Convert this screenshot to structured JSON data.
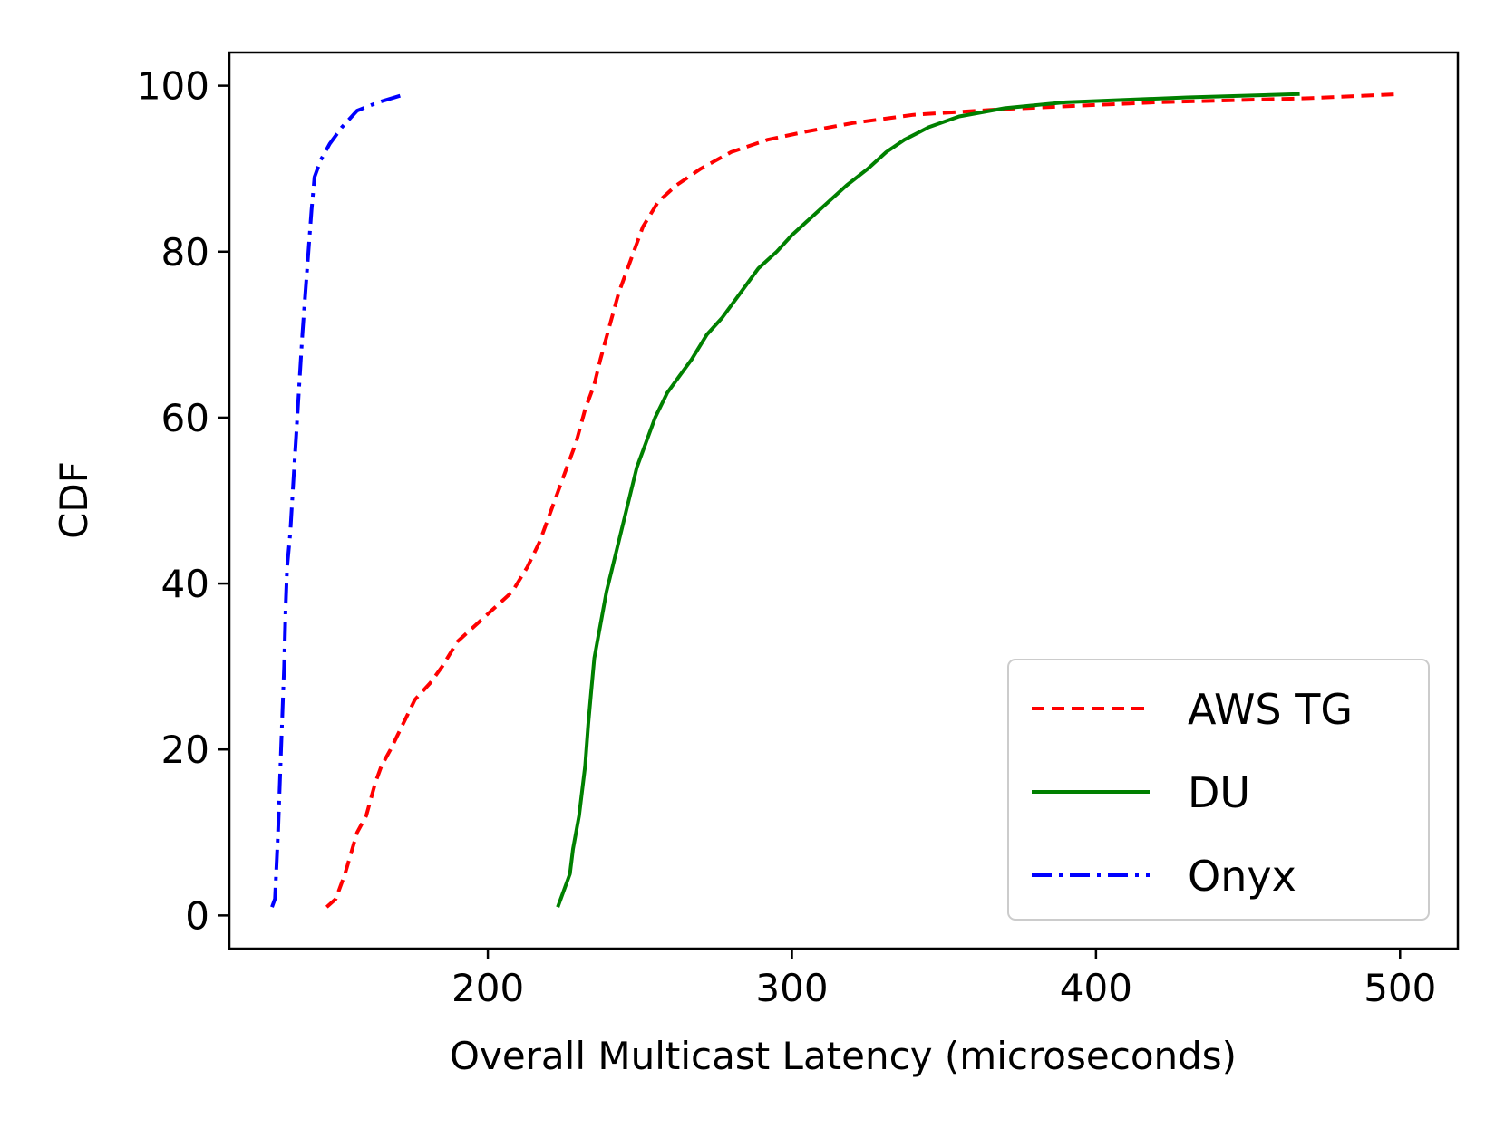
{
  "chart_data": {
    "type": "line",
    "title": "",
    "xlabel": "Overall Multicast Latency (microseconds)",
    "ylabel": "CDF",
    "xlim": [
      115,
      519
    ],
    "ylim": [
      -4,
      104
    ],
    "xticks": [
      200,
      300,
      400,
      500
    ],
    "yticks": [
      0,
      20,
      40,
      60,
      80,
      100
    ],
    "grid": false,
    "legend_position": "lower-right",
    "series": [
      {
        "name": "AWS TG",
        "color": "#ff0000",
        "style": "dashed",
        "points": [
          [
            147,
            1
          ],
          [
            150,
            2
          ],
          [
            153,
            5
          ],
          [
            157,
            10
          ],
          [
            160,
            12
          ],
          [
            163,
            16
          ],
          [
            165,
            18
          ],
          [
            168,
            20
          ],
          [
            172,
            23
          ],
          [
            176,
            26
          ],
          [
            181,
            28
          ],
          [
            185,
            30
          ],
          [
            190,
            33
          ],
          [
            196,
            35
          ],
          [
            202,
            37
          ],
          [
            208,
            39
          ],
          [
            213,
            42
          ],
          [
            217,
            45
          ],
          [
            221,
            49
          ],
          [
            225,
            53
          ],
          [
            229,
            57
          ],
          [
            232,
            61
          ],
          [
            235,
            64
          ],
          [
            237,
            67
          ],
          [
            240,
            71
          ],
          [
            243,
            75
          ],
          [
            247,
            79
          ],
          [
            251,
            83
          ],
          [
            256,
            86
          ],
          [
            262,
            88
          ],
          [
            270,
            90
          ],
          [
            280,
            92
          ],
          [
            292,
            93.5
          ],
          [
            305,
            94.5
          ],
          [
            320,
            95.5
          ],
          [
            340,
            96.5
          ],
          [
            370,
            97.2
          ],
          [
            420,
            98
          ],
          [
            470,
            98.5
          ],
          [
            500,
            99
          ]
        ]
      },
      {
        "name": "DU",
        "color": "#008000",
        "style": "solid",
        "points": [
          [
            223,
            1
          ],
          [
            227,
            5
          ],
          [
            228,
            8
          ],
          [
            230,
            12
          ],
          [
            232,
            18
          ],
          [
            233,
            23
          ],
          [
            234,
            27
          ],
          [
            235,
            31
          ],
          [
            237,
            35
          ],
          [
            239,
            39
          ],
          [
            241,
            42
          ],
          [
            243,
            45
          ],
          [
            245,
            48
          ],
          [
            247,
            51
          ],
          [
            249,
            54
          ],
          [
            252,
            57
          ],
          [
            255,
            60
          ],
          [
            259,
            63
          ],
          [
            263,
            65
          ],
          [
            267,
            67
          ],
          [
            272,
            70
          ],
          [
            277,
            72
          ],
          [
            283,
            75
          ],
          [
            289,
            78
          ],
          [
            295,
            80
          ],
          [
            300,
            82
          ],
          [
            306,
            84
          ],
          [
            312,
            86
          ],
          [
            318,
            88
          ],
          [
            325,
            90
          ],
          [
            331,
            92
          ],
          [
            337,
            93.5
          ],
          [
            345,
            95
          ],
          [
            355,
            96.3
          ],
          [
            370,
            97.3
          ],
          [
            390,
            98
          ],
          [
            430,
            98.6
          ],
          [
            467,
            99
          ]
        ]
      },
      {
        "name": "Onyx",
        "color": "#0000ff",
        "style": "dashdot",
        "points": [
          [
            129,
            1
          ],
          [
            130,
            2
          ],
          [
            131,
            10
          ],
          [
            132,
            20
          ],
          [
            133,
            30
          ],
          [
            133.5,
            37
          ],
          [
            134,
            42
          ],
          [
            135,
            46
          ],
          [
            136,
            52
          ],
          [
            137,
            58
          ],
          [
            138,
            64
          ],
          [
            139,
            70
          ],
          [
            140,
            75
          ],
          [
            141,
            80
          ],
          [
            142,
            85
          ],
          [
            143,
            89
          ],
          [
            145,
            91
          ],
          [
            148,
            93
          ],
          [
            152,
            95
          ],
          [
            157,
            97
          ],
          [
            164,
            98
          ],
          [
            173,
            99
          ]
        ]
      }
    ]
  }
}
